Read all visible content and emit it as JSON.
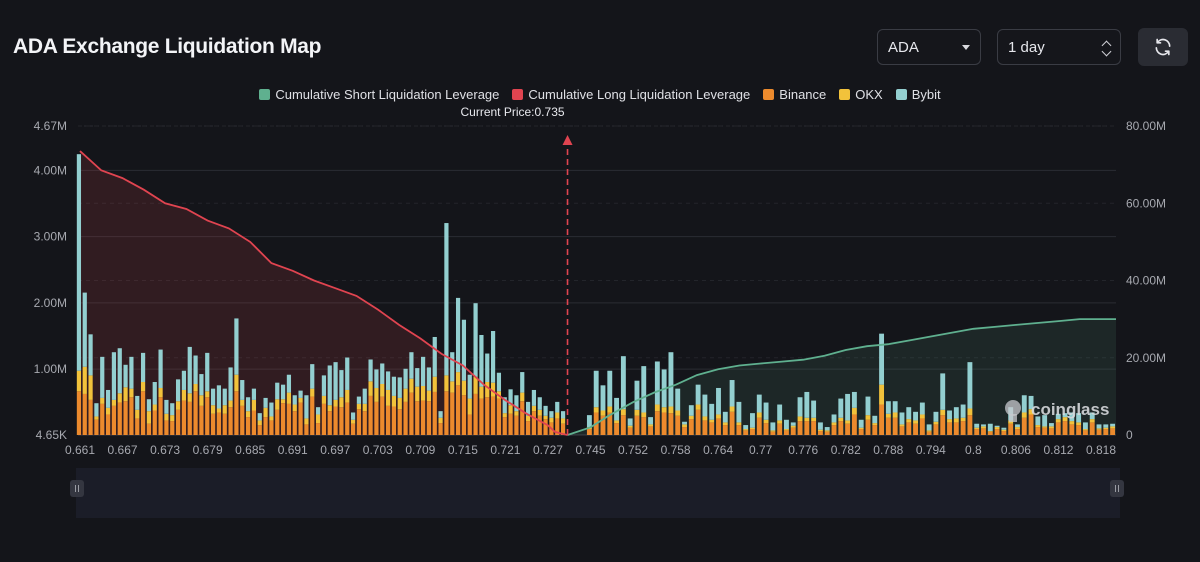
{
  "header": {
    "title": "ADA Exchange Liquidation Map"
  },
  "controls": {
    "asset": "ADA",
    "period": "1 day"
  },
  "colors": {
    "short": "#5fb08f",
    "long": "#e04450",
    "binance": "#ec8a2d",
    "okx": "#f2c23b",
    "bybit": "#93cfd0",
    "background": "#14151a"
  },
  "chart_data": {
    "type": "bar",
    "annotations": {
      "current_price_label": "Current Price:0.735",
      "watermark": "coinglass"
    },
    "legend": [
      {
        "key": "short",
        "label": "Cumulative Short Liquidation Leverage",
        "type": "line"
      },
      {
        "key": "long",
        "label": "Cumulative Long Liquidation Leverage",
        "type": "line"
      },
      {
        "key": "binance",
        "label": "Binance",
        "type": "bar"
      },
      {
        "key": "okx",
        "label": "OKX",
        "type": "bar"
      },
      {
        "key": "bybit",
        "label": "Bybit",
        "type": "bar"
      }
    ],
    "legend_position": "top-center",
    "y_left": {
      "ticks": [
        "4.65K",
        "1.00M",
        "2.00M",
        "3.00M",
        "4.00M",
        "4.67M"
      ],
      "tick_values": [
        0.00465,
        1,
        2,
        3,
        4,
        4.67
      ],
      "range": [
        0.00465,
        4.67
      ],
      "unit": "M"
    },
    "y_right": {
      "ticks": [
        "0",
        "20.00M",
        "40.00M",
        "60.00M",
        "80.00M"
      ],
      "tick_values": [
        0,
        20,
        40,
        60,
        80
      ],
      "range": [
        0,
        80
      ],
      "unit": "M"
    },
    "x_tick_labels": [
      "0.661",
      "0.667",
      "0.673",
      "0.679",
      "0.685",
      "0.691",
      "0.697",
      "0.703",
      "0.709",
      "0.715",
      "0.721",
      "0.727",
      "0.745",
      "0.752",
      "0.758",
      "0.764",
      "0.77",
      "0.776",
      "0.782",
      "0.788",
      "0.794",
      "0.8",
      "0.806",
      "0.812",
      "0.818"
    ],
    "x_range": [
      0.661,
      0.821
    ],
    "current_price": 0.735,
    "long_side": {
      "bins": 84,
      "binance": [
        0.66,
        0.62,
        0.53,
        0.23,
        0.47,
        0.31,
        0.44,
        0.49,
        0.51,
        0.57,
        0.25,
        0.66,
        0.17,
        0.37,
        0.57,
        0.22,
        0.21,
        0.38,
        0.52,
        0.5,
        0.66,
        0.44,
        0.57,
        0.32,
        0.34,
        0.32,
        0.42,
        0.66,
        0.44,
        0.27,
        0.37,
        0.15,
        0.27,
        0.22,
        0.38,
        0.48,
        0.47,
        0.36,
        0.49,
        0.16,
        0.58,
        0.18,
        0.47,
        0.36,
        0.43,
        0.42,
        0.49,
        0.17,
        0.39,
        0.36,
        0.59,
        0.5,
        0.58,
        0.44,
        0.43,
        0.39,
        0.5,
        0.64,
        0.51,
        0.52,
        0.51,
        0.65,
        0.18,
        0.64,
        0.64,
        0.56,
        0.56,
        0.31,
        0.24,
        0.39,
        0.57,
        0.47,
        0.55,
        0.27,
        0.32,
        0.29,
        0.51,
        0.21,
        0.36,
        0.29,
        0.24,
        0.19,
        0.25,
        0.17
      ],
      "okx": [
        0.31,
        0.41,
        0.37,
        0.05,
        0.09,
        0.1,
        0.09,
        0.14,
        0.21,
        0.13,
        0.13,
        0.14,
        0.19,
        0.09,
        0.14,
        0.1,
        0.09,
        0.13,
        0.16,
        0.13,
        0.11,
        0.16,
        0.09,
        0.13,
        0.06,
        0.13,
        0.1,
        0.25,
        0.09,
        0.09,
        0.16,
        0.07,
        0.14,
        0.06,
        0.16,
        0.06,
        0.17,
        0.1,
        0.07,
        0.09,
        0.12,
        0.13,
        0.12,
        0.09,
        0.1,
        0.15,
        0.19,
        0.06,
        0.08,
        0.11,
        0.22,
        0.21,
        0.19,
        0.24,
        0.16,
        0.17,
        0.2,
        0.21,
        0.22,
        0.22,
        0.16,
        0.23,
        0.08,
        0.22,
        0.17,
        0.2,
        0.09,
        0.24,
        0.05,
        0.1,
        0.23,
        0.14,
        0.11,
        0.06,
        0.13,
        0.07,
        0.13,
        0.08,
        0.08,
        0.09,
        0.05,
        0.07,
        0.09,
        0.08
      ],
      "bybit": [
        3.27,
        1.12,
        0.62,
        0.2,
        0.62,
        0.27,
        0.72,
        0.68,
        0.34,
        0.48,
        0.21,
        0.44,
        0.18,
        0.34,
        0.58,
        0.21,
        0.18,
        0.33,
        0.29,
        0.7,
        0.43,
        0.32,
        0.58,
        0.25,
        0.35,
        0.25,
        0.5,
        0.85,
        0.3,
        0.21,
        0.17,
        0.11,
        0.15,
        0.21,
        0.25,
        0.22,
        0.27,
        0.14,
        0.11,
        0.35,
        0.37,
        0.11,
        0.31,
        0.6,
        0.57,
        0.41,
        0.49,
        0.11,
        0.11,
        0.23,
        0.33,
        0.28,
        0.31,
        0.28,
        0.29,
        0.31,
        0.3,
        0.4,
        0.28,
        0.44,
        0.35,
        0.6,
        0.1,
        0.42,
        0.44,
        0.38,
        0.4,
        0.36,
        0.06,
        0.29,
        0.43,
        0.33,
        0.28,
        0.24,
        0.24,
        0.24,
        0.31,
        0.21,
        0.24,
        0.19,
        0.15,
        0.1,
        0.16,
        0.11
      ]
    },
    "long_spikes": [
      {
        "bin": 63,
        "binance": 0.66,
        "okx": 0.24,
        "bybit": 2.3
      },
      {
        "bin": 65,
        "binance": 0.75,
        "okx": 0.2,
        "bybit": 1.12
      },
      {
        "bin": 66,
        "binance": 0.6,
        "okx": 0.22,
        "bybit": 0.92
      },
      {
        "bin": 68,
        "binance": 0.62,
        "okx": 0.26,
        "bybit": 1.11
      },
      {
        "bin": 69,
        "binance": 0.55,
        "okx": 0.18,
        "bybit": 0.78
      },
      {
        "bin": 71,
        "binance": 0.58,
        "okx": 0.21,
        "bybit": 0.78
      }
    ],
    "short_side": {
      "bins": 78,
      "binance": [
        0.09,
        0.17,
        0.29,
        0.34,
        0.18,
        0.32,
        0.11,
        0.29,
        0.09,
        0.13,
        0.09,
        0.34,
        0.2,
        0.29,
        0.12,
        0.24,
        0.1,
        0.22,
        0.19,
        0.06,
        0.15,
        0.08,
        0.15,
        0.07,
        0.09,
        0.26,
        0.18,
        0.05,
        0.17,
        0.07,
        0.11,
        0.21,
        0.21,
        0.21,
        0.06,
        0.05,
        0.15,
        0.21,
        0.17,
        0.31,
        0.09,
        0.23,
        0.15,
        0.46,
        0.26,
        0.26,
        0.13,
        0.19,
        0.17,
        0.25,
        0.05,
        0.16,
        0.14,
        0.19,
        0.19,
        0.21,
        0.22,
        0.09,
        0.1,
        0.05,
        0.09,
        0.06,
        0.17,
        0.09,
        0.26,
        0.31,
        0.12,
        0.11,
        0.1,
        0.19,
        0.21,
        0.16,
        0.15,
        0.07,
        0.19,
        0.08,
        0.09,
        0.1
      ],
      "okx": [
        0.03,
        0.05,
        0.08,
        0.09,
        0.04,
        0.09,
        0.03,
        0.09,
        0.02,
        0.03,
        0.03,
        0.08,
        0.05,
        0.08,
        0.04,
        0.05,
        0.03,
        0.06,
        0.04,
        0.02,
        0.04,
        0.03,
        0.04,
        0.02,
        0.02,
        0.08,
        0.05,
        0.02,
        0.05,
        0.02,
        0.03,
        0.07,
        0.05,
        0.05,
        0.02,
        0.02,
        0.04,
        0.05,
        0.05,
        0.1,
        0.02,
        0.07,
        0.03,
        0.3,
        0.06,
        0.08,
        0.03,
        0.05,
        0.05,
        0.06,
        0.02,
        0.04,
        0.04,
        0.05,
        0.06,
        0.05,
        0.06,
        0.02,
        0.03,
        0.01,
        0.03,
        0.02,
        0.05,
        0.03,
        0.08,
        0.08,
        0.03,
        0.02,
        0.03,
        0.05,
        0.06,
        0.05,
        0.04,
        0.02,
        0.05,
        0.02,
        0.02,
        0.03
      ],
      "bybit": [
        0.18,
        0.65,
        0.38,
        0.54,
        0.34,
        0.65,
        0.11,
        0.44,
        0.08,
        0.11,
        0.16,
        0.57,
        0.4,
        0.33,
        0.04,
        0.16,
        0.07,
        0.33,
        0.24,
        0.12,
        0.16,
        0.15,
        0.31,
        0.06,
        0.22,
        0.27,
        0.26,
        0.12,
        0.24,
        0.14,
        0.05,
        0.29,
        0.39,
        0.26,
        0.11,
        0.05,
        0.12,
        0.29,
        0.4,
        0.24,
        0.12,
        0.28,
        0.11,
        0.77,
        0.19,
        0.17,
        0.18,
        0.18,
        0.13,
        0.18,
        0.09,
        0.15,
        0.2,
        0.13,
        0.17,
        0.2,
        0.12,
        0.06,
        0.03,
        0.11,
        0.02,
        0.03,
        0.2,
        0.04,
        0.26,
        0.2,
        0.13,
        0.17,
        0.05,
        0.08,
        0.06,
        0.13,
        0.14,
        0.1,
        0.1,
        0.06,
        0.05,
        0.04
      ]
    },
    "short_spikes": [
      {
        "bin": 1,
        "binance": 0.34,
        "okx": 0.08,
        "bybit": 0.55
      },
      {
        "bin": 5,
        "binance": 0.3,
        "okx": 0.09,
        "bybit": 0.8
      },
      {
        "bin": 8,
        "binance": 0.27,
        "okx": 0.07,
        "bybit": 0.7
      },
      {
        "bin": 10,
        "binance": 0.36,
        "okx": 0.1,
        "bybit": 0.65
      },
      {
        "bin": 12,
        "binance": 0.33,
        "okx": 0.1,
        "bybit": 0.82
      },
      {
        "bin": 16,
        "binance": 0.38,
        "okx": 0.08,
        "bybit": 0.3
      },
      {
        "bin": 19,
        "binance": 0.25,
        "okx": 0.06,
        "bybit": 0.4
      },
      {
        "bin": 21,
        "binance": 0.35,
        "okx": 0.08,
        "bybit": 0.4
      },
      {
        "bin": 52,
        "binance": 0.3,
        "okx": 0.08,
        "bybit": 0.55
      },
      {
        "bin": 56,
        "binance": 0.3,
        "okx": 0.1,
        "bybit": 0.7
      }
    ],
    "cumulative_long": [
      {
        "x": 0.661,
        "y": 73.5
      },
      {
        "x": 0.664,
        "y": 68.5
      },
      {
        "x": 0.667,
        "y": 66.5
      },
      {
        "x": 0.67,
        "y": 63.5
      },
      {
        "x": 0.673,
        "y": 60.0
      },
      {
        "x": 0.676,
        "y": 58.5
      },
      {
        "x": 0.679,
        "y": 55.5
      },
      {
        "x": 0.682,
        "y": 53.5
      },
      {
        "x": 0.685,
        "y": 50.0
      },
      {
        "x": 0.688,
        "y": 44.5
      },
      {
        "x": 0.691,
        "y": 42.5
      },
      {
        "x": 0.694,
        "y": 40.0
      },
      {
        "x": 0.697,
        "y": 38.0
      },
      {
        "x": 0.7,
        "y": 36.0
      },
      {
        "x": 0.703,
        "y": 32.5
      },
      {
        "x": 0.706,
        "y": 28.5
      },
      {
        "x": 0.709,
        "y": 25.0
      },
      {
        "x": 0.712,
        "y": 21.0
      },
      {
        "x": 0.715,
        "y": 18.0
      },
      {
        "x": 0.718,
        "y": 13.0
      },
      {
        "x": 0.721,
        "y": 9.0
      },
      {
        "x": 0.724,
        "y": 5.5
      },
      {
        "x": 0.727,
        "y": 2.5
      },
      {
        "x": 0.73,
        "y": 0.8
      },
      {
        "x": 0.733,
        "y": 0.3
      },
      {
        "x": 0.735,
        "y": 0
      }
    ],
    "cumulative_short": [
      {
        "x": 0.735,
        "y": 0
      },
      {
        "x": 0.745,
        "y": 2.0
      },
      {
        "x": 0.748,
        "y": 5.0
      },
      {
        "x": 0.752,
        "y": 8.5
      },
      {
        "x": 0.755,
        "y": 11.0
      },
      {
        "x": 0.758,
        "y": 13.0
      },
      {
        "x": 0.761,
        "y": 15.5
      },
      {
        "x": 0.764,
        "y": 17.0
      },
      {
        "x": 0.767,
        "y": 18.0
      },
      {
        "x": 0.77,
        "y": 18.5
      },
      {
        "x": 0.773,
        "y": 19.0
      },
      {
        "x": 0.776,
        "y": 19.5
      },
      {
        "x": 0.779,
        "y": 20.5
      },
      {
        "x": 0.782,
        "y": 22.0
      },
      {
        "x": 0.785,
        "y": 23.0
      },
      {
        "x": 0.788,
        "y": 23.5
      },
      {
        "x": 0.791,
        "y": 24.5
      },
      {
        "x": 0.794,
        "y": 25.5
      },
      {
        "x": 0.797,
        "y": 26.5
      },
      {
        "x": 0.8,
        "y": 27.5
      },
      {
        "x": 0.803,
        "y": 28.0
      },
      {
        "x": 0.806,
        "y": 28.5
      },
      {
        "x": 0.809,
        "y": 29.0
      },
      {
        "x": 0.812,
        "y": 29.5
      },
      {
        "x": 0.815,
        "y": 30.0
      },
      {
        "x": 0.818,
        "y": 30.0
      },
      {
        "x": 0.821,
        "y": 30.0
      }
    ]
  }
}
